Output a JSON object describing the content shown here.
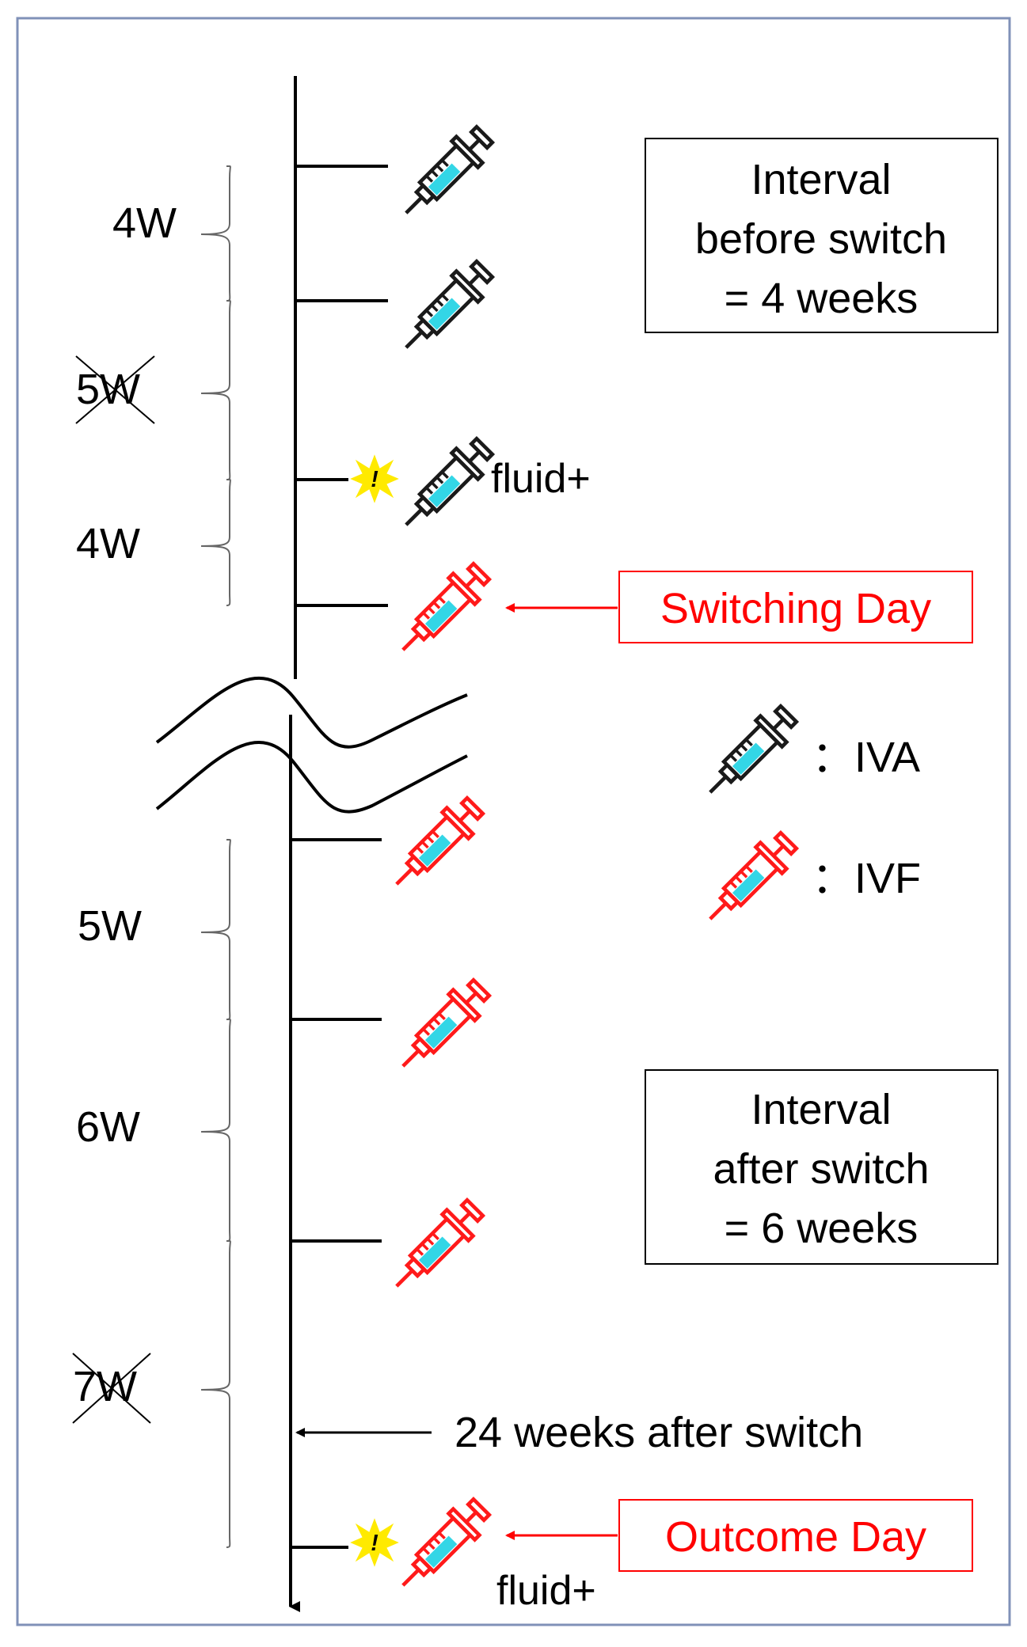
{
  "interval_labels": {
    "before_1": "4W",
    "before_2": "5W",
    "before_3": "4W",
    "after_1": "5W",
    "after_2": "6W",
    "after_3": "7W"
  },
  "crossed_out": [
    "5W",
    "7W"
  ],
  "events": {
    "fluid_1": "fluid+",
    "fluid_2": "fluid+",
    "switching_day": "Switching Day",
    "outcome_day": "Outcome Day",
    "weeks_after_switch": "24 weeks after switch"
  },
  "box_before": {
    "line1": "Interval",
    "line2": "before switch",
    "line3": "= 4 weeks"
  },
  "box_after": {
    "line1": "Interval",
    "line2": "after switch",
    "line3": "= 6 weeks"
  },
  "legend": {
    "iva": "：IVA",
    "ivf": "：IVF"
  },
  "icons": {
    "iva": "syringe-icon-blue",
    "ivf": "syringe-icon-red",
    "alert": "warning-starburst-icon"
  },
  "colors": {
    "iva_outline": "#1a1a1a",
    "ivf_outline": "#ff1a1a",
    "fill": "#33d6e6",
    "highlight": "#ff0000",
    "alert": "#ffea00",
    "frame": "#8091b8"
  }
}
